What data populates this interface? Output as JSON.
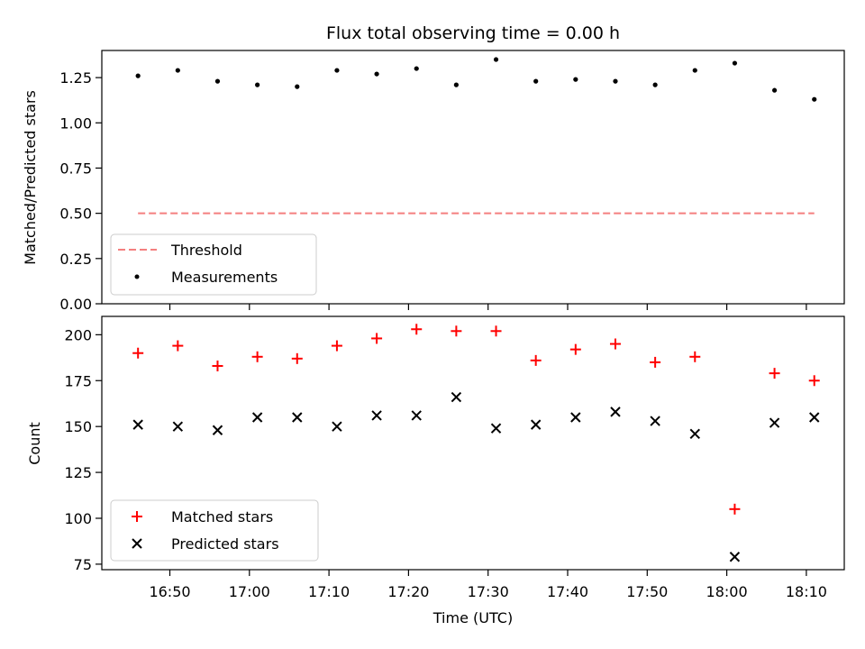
{
  "chart_data": [
    {
      "type": "scatter",
      "title": "Flux total observing time = 0.00 h",
      "ylabel": "Matched/Predicted stars",
      "xlabel": "",
      "ylim": [
        0.0,
        1.4
      ],
      "yticks": [
        0.0,
        0.25,
        0.5,
        0.75,
        1.0,
        1.25
      ],
      "x": [
        "16:46",
        "16:51",
        "16:56",
        "17:01",
        "17:06",
        "17:11",
        "17:16",
        "17:21",
        "17:26",
        "17:31",
        "17:36",
        "17:41",
        "17:46",
        "17:51",
        "17:56",
        "18:01",
        "18:06",
        "18:11"
      ],
      "series": [
        {
          "name": "Measurements",
          "marker": "dot",
          "color": "#000000",
          "values": [
            1.26,
            1.29,
            1.23,
            1.21,
            1.2,
            1.29,
            1.27,
            1.3,
            1.21,
            1.35,
            1.23,
            1.24,
            1.23,
            1.21,
            1.29,
            1.33,
            1.18,
            1.13
          ]
        }
      ],
      "threshold": {
        "name": "Threshold",
        "value": 0.5,
        "x_start": "16:46",
        "x_end": "18:11",
        "color": "#f47f7f",
        "style": "dashed"
      },
      "legend": {
        "position": "lower-left"
      }
    },
    {
      "type": "scatter",
      "title": "",
      "ylabel": "Count",
      "xlabel": "Time (UTC)",
      "ylim": [
        72,
        210
      ],
      "yticks": [
        75,
        100,
        125,
        150,
        175,
        200
      ],
      "xticks": [
        "16:50",
        "17:00",
        "17:10",
        "17:20",
        "17:30",
        "17:40",
        "17:50",
        "18:00",
        "18:10"
      ],
      "x": [
        "16:46",
        "16:51",
        "16:56",
        "17:01",
        "17:06",
        "17:11",
        "17:16",
        "17:21",
        "17:26",
        "17:31",
        "17:36",
        "17:41",
        "17:46",
        "17:51",
        "17:56",
        "18:01",
        "18:06",
        "18:11"
      ],
      "series": [
        {
          "name": "Matched stars",
          "marker": "plus",
          "color": "#ff0000",
          "values": [
            190,
            194,
            183,
            188,
            187,
            194,
            198,
            203,
            202,
            202,
            186,
            192,
            195,
            185,
            188,
            105,
            179,
            175
          ]
        },
        {
          "name": "Predicted stars",
          "marker": "x",
          "color": "#000000",
          "values": [
            151,
            150,
            148,
            155,
            155,
            150,
            156,
            156,
            166,
            149,
            151,
            155,
            158,
            153,
            146,
            79,
            152,
            155
          ]
        }
      ],
      "legend": {
        "position": "lower-left"
      }
    }
  ]
}
